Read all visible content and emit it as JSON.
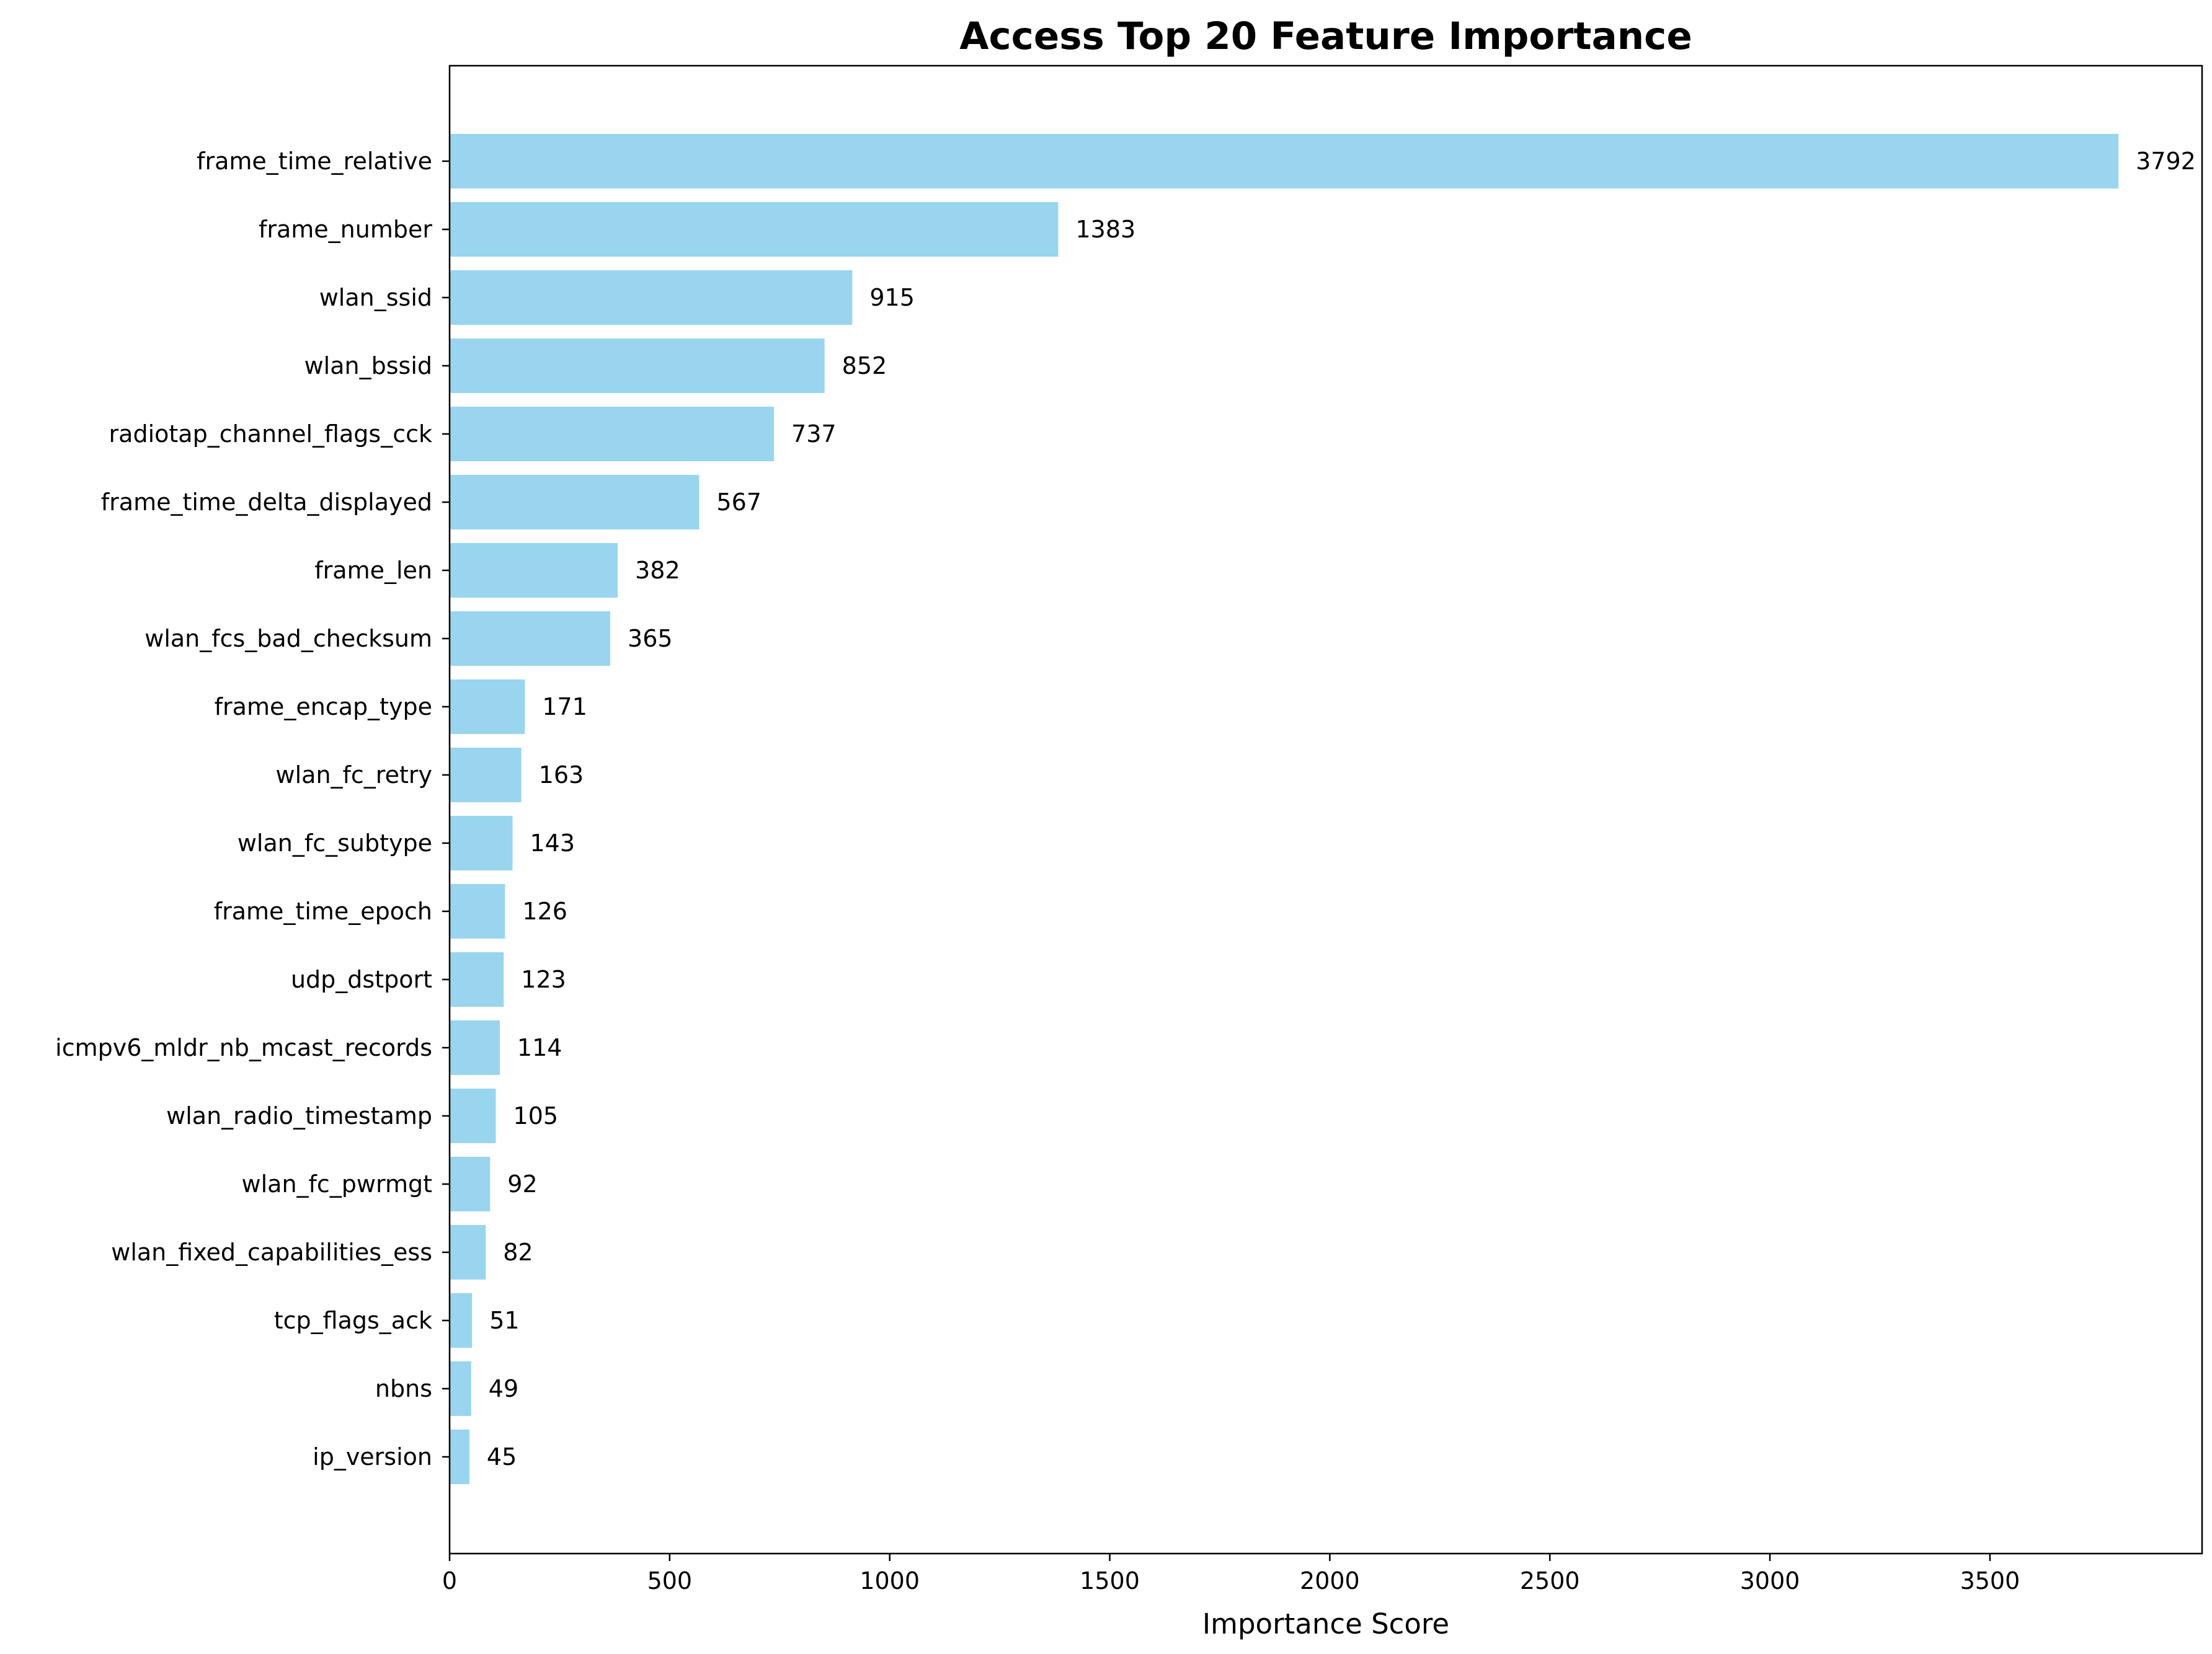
{
  "chart_data": {
    "type": "bar",
    "orientation": "horizontal",
    "title": "Access Top 20 Feature Importance",
    "xlabel": "Importance Score",
    "ylabel": "",
    "xlim": [
      0,
      3982
    ],
    "xticks": [
      0,
      500,
      1000,
      1500,
      2000,
      2500,
      3000,
      3500
    ],
    "grid": false,
    "bar_color": "#99d5ee",
    "categories": [
      "frame_time_relative",
      "frame_number",
      "wlan_ssid",
      "wlan_bssid",
      "radiotap_channel_flags_cck",
      "frame_time_delta_displayed",
      "frame_len",
      "wlan_fcs_bad_checksum",
      "frame_encap_type",
      "wlan_fc_retry",
      "wlan_fc_subtype",
      "frame_time_epoch",
      "udp_dstport",
      "icmpv6_mldr_nb_mcast_records",
      "wlan_radio_timestamp",
      "wlan_fc_pwrmgt",
      "wlan_fixed_capabilities_ess",
      "tcp_flags_ack",
      "nbns",
      "ip_version"
    ],
    "values": [
      3792,
      1383,
      915,
      852,
      737,
      567,
      382,
      365,
      171,
      163,
      143,
      126,
      123,
      114,
      105,
      92,
      82,
      51,
      49,
      45
    ]
  }
}
